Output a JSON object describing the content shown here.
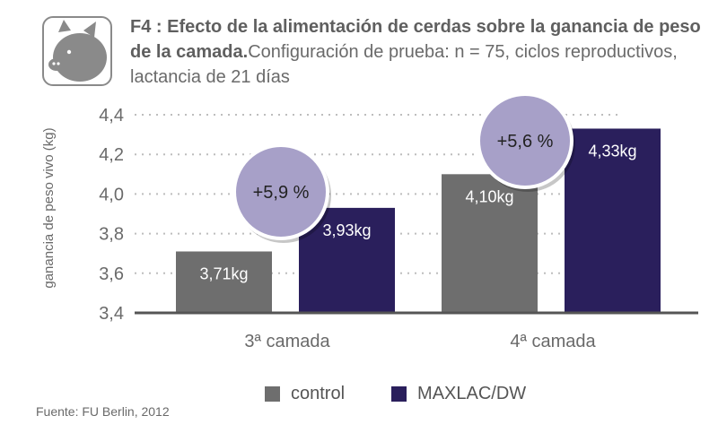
{
  "title": {
    "bold": "F4 : Efecto de la alimentación de cerdas sobre la ganancia de peso de la camada.",
    "normal": "Configuración de prueba: n = 75, ciclos reproductivos, lactancia de 21 días"
  },
  "icon": "pig-icon",
  "source": "Fuente: FU Berlin, 2012",
  "colors": {
    "control": "#6e6e6e",
    "maxlac": "#2a1f5c",
    "circle": "#a7a0c8",
    "grid": "#bdbdbd",
    "axis": "#555555"
  },
  "chart_data": {
    "type": "bar",
    "title": "F4 : Efecto de la alimentación de cerdas sobre la ganancia de peso de la camada.",
    "ylabel": "ganancia de peso vivo (kg)",
    "xlabel": "",
    "ylim": [
      3.4,
      4.4
    ],
    "yticks": [
      "3,4",
      "3,6",
      "3,8",
      "4,0",
      "4,2",
      "4,4"
    ],
    "ytick_values": [
      3.4,
      3.6,
      3.8,
      4.0,
      4.2,
      4.4
    ],
    "categories": [
      "3ª camada",
      "4ª camada"
    ],
    "series": [
      {
        "name": "control",
        "values": [
          3.71,
          4.1
        ],
        "labels": [
          "3,71kg",
          "4,10kg"
        ]
      },
      {
        "name": "MAXLAC/DW",
        "values": [
          3.93,
          4.33
        ],
        "labels": [
          "3,93kg",
          "4,33kg"
        ]
      }
    ],
    "annotations": [
      "+5,9 %",
      "+5,6 %"
    ],
    "legend_position": "bottom"
  }
}
